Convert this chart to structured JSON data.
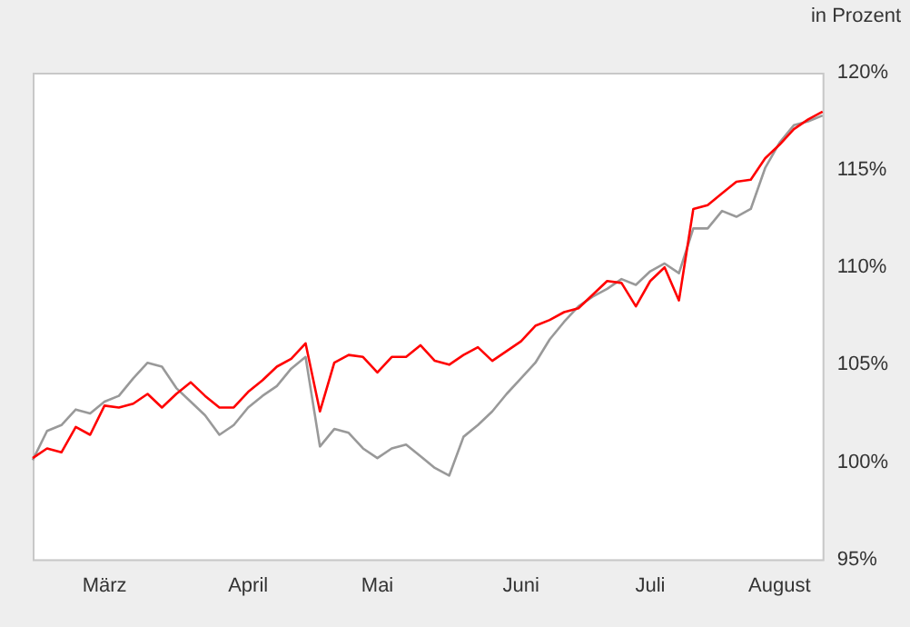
{
  "chart_data": {
    "type": "line",
    "ylabel": "in Prozent",
    "categories": [
      null,
      null,
      null,
      null,
      null,
      "März",
      null,
      null,
      null,
      null,
      null,
      null,
      null,
      null,
      null,
      "April",
      null,
      null,
      null,
      null,
      null,
      null,
      null,
      null,
      "Mai",
      null,
      null,
      null,
      null,
      null,
      null,
      null,
      null,
      null,
      "Juni",
      null,
      null,
      null,
      null,
      null,
      null,
      null,
      null,
      "Juli",
      null,
      null,
      null,
      null,
      null,
      null,
      null,
      null,
      "August",
      null,
      null,
      null
    ],
    "series": [
      {
        "color": "#ff0000",
        "values": [
          100.2,
          100.7,
          100.5,
          101.8,
          101.4,
          102.9,
          102.8,
          103.0,
          103.5,
          102.8,
          103.5,
          104.1,
          103.4,
          102.8,
          102.8,
          103.6,
          104.2,
          104.9,
          105.3,
          106.1,
          102.6,
          105.1,
          105.5,
          105.4,
          104.6,
          105.4,
          105.4,
          106.0,
          105.2,
          105.0,
          105.5,
          105.9,
          105.2,
          105.7,
          106.2,
          107.0,
          107.3,
          107.7,
          107.9,
          108.6,
          109.3,
          109.2,
          108.0,
          109.3,
          110.0,
          108.3,
          113.0,
          113.2,
          113.8,
          114.4,
          114.5,
          115.6,
          116.3,
          117.1,
          117.6,
          118.0
        ]
      },
      {
        "color": "#999999",
        "values": [
          100.1,
          101.6,
          101.9,
          102.7,
          102.5,
          103.1,
          103.4,
          104.3,
          105.1,
          104.9,
          103.8,
          103.1,
          102.4,
          101.4,
          101.9,
          102.8,
          103.4,
          103.9,
          104.8,
          105.4,
          100.8,
          101.7,
          101.5,
          100.7,
          100.2,
          100.7,
          100.9,
          100.3,
          99.7,
          99.3,
          101.3,
          101.9,
          102.6,
          103.5,
          104.3,
          105.1,
          106.3,
          107.2,
          108.0,
          108.5,
          108.9,
          109.4,
          109.1,
          109.8,
          110.2,
          109.7,
          112.0,
          112.0,
          112.9,
          112.6,
          113.0,
          115.1,
          116.4,
          117.3,
          117.5,
          117.8
        ]
      }
    ],
    "ylim": [
      95,
      120
    ],
    "yticks": [
      {
        "value": 95,
        "label": "95%"
      },
      {
        "value": 100,
        "label": "100%"
      },
      {
        "value": 105,
        "label": "105%"
      },
      {
        "value": 110,
        "label": "110%"
      },
      {
        "value": 115,
        "label": "115%"
      },
      {
        "value": 120,
        "label": "120%"
      }
    ],
    "grid": false,
    "legend": false,
    "marker": "none",
    "line_style": "solid"
  }
}
